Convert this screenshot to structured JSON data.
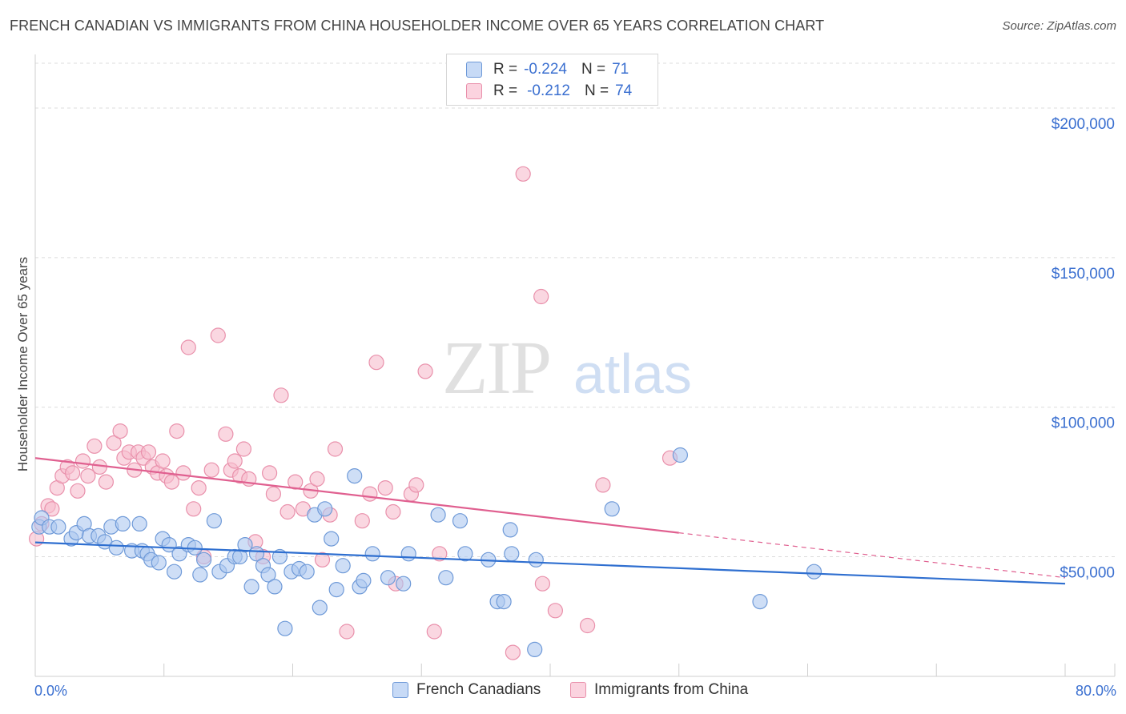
{
  "title": "FRENCH CANADIAN VS IMMIGRANTS FROM CHINA HOUSEHOLDER INCOME OVER 65 YEARS CORRELATION CHART",
  "source": "Source: ZipAtlas.com",
  "watermark": {
    "zip": "ZIP",
    "atlas": "atlas"
  },
  "colors": {
    "blue_fill": "#aec8f0",
    "blue_stroke": "#6f9ad8",
    "blue_line": "#2f6fd0",
    "pink_fill": "#f6bccd",
    "pink_stroke": "#e990ab",
    "pink_line": "#e06090",
    "axis_text": "#3a6fd0",
    "grid": "#dcdcdc"
  },
  "legend_top": {
    "r_label": "R =",
    "n_label": "N =",
    "rows": [
      {
        "r": "-0.224",
        "n": "71"
      },
      {
        "r": "-0.212",
        "n": "74"
      }
    ]
  },
  "bottom_legend": [
    "French Canadians",
    "Immigrants from China"
  ],
  "chart_data": {
    "type": "scatter",
    "title": "FRENCH CANADIAN VS IMMIGRANTS FROM CHINA HOUSEHOLDER INCOME OVER 65 YEARS CORRELATION CHART",
    "xlabel": "",
    "ylabel": "Householder Income Over 65 years",
    "xlim": [
      0,
      80
    ],
    "ylim": [
      10000,
      215000
    ],
    "x_tick_labels": [
      "0.0%",
      "80.0%"
    ],
    "y_ticks": [
      50000,
      100000,
      150000,
      200000
    ],
    "y_tick_labels": [
      "$50,000",
      "$100,000",
      "$150,000",
      "$200,000"
    ],
    "grid": true,
    "legend": "bottom",
    "series": [
      {
        "name": "French Canadians",
        "color": "#aec8f0",
        "regression": {
          "x": [
            0,
            80
          ],
          "y": [
            54800,
            41000
          ]
        },
        "points": [
          [
            0.3,
            60000
          ],
          [
            0.5,
            63000
          ],
          [
            1.1,
            60000
          ],
          [
            1.8,
            60000
          ],
          [
            2.8,
            56000
          ],
          [
            3.2,
            58000
          ],
          [
            3.8,
            61000
          ],
          [
            4.2,
            57000
          ],
          [
            4.9,
            57000
          ],
          [
            5.4,
            55000
          ],
          [
            5.9,
            60000
          ],
          [
            6.3,
            53000
          ],
          [
            6.8,
            61000
          ],
          [
            7.5,
            52000
          ],
          [
            8.1,
            61000
          ],
          [
            8.3,
            52000
          ],
          [
            8.7,
            51000
          ],
          [
            9.0,
            49000
          ],
          [
            9.6,
            48000
          ],
          [
            9.9,
            56000
          ],
          [
            10.4,
            54000
          ],
          [
            10.8,
            45000
          ],
          [
            11.2,
            51000
          ],
          [
            11.9,
            54000
          ],
          [
            12.4,
            53000
          ],
          [
            12.8,
            44000
          ],
          [
            13.1,
            49000
          ],
          [
            13.9,
            62000
          ],
          [
            14.3,
            45000
          ],
          [
            14.9,
            47000
          ],
          [
            15.5,
            50000
          ],
          [
            15.9,
            50000
          ],
          [
            16.3,
            54000
          ],
          [
            16.8,
            40000
          ],
          [
            17.2,
            51000
          ],
          [
            17.7,
            47000
          ],
          [
            18.1,
            44000
          ],
          [
            18.6,
            40000
          ],
          [
            19.0,
            50000
          ],
          [
            19.4,
            26000
          ],
          [
            19.9,
            45000
          ],
          [
            20.5,
            46000
          ],
          [
            21.1,
            45000
          ],
          [
            21.7,
            64000
          ],
          [
            22.1,
            33000
          ],
          [
            22.5,
            66000
          ],
          [
            23.0,
            56000
          ],
          [
            23.4,
            39000
          ],
          [
            23.9,
            47000
          ],
          [
            24.8,
            77000
          ],
          [
            25.2,
            40000
          ],
          [
            25.5,
            42000
          ],
          [
            26.2,
            51000
          ],
          [
            27.4,
            43000
          ],
          [
            28.6,
            41000
          ],
          [
            29.0,
            51000
          ],
          [
            31.3,
            64000
          ],
          [
            31.9,
            43000
          ],
          [
            33.0,
            62000
          ],
          [
            33.4,
            51000
          ],
          [
            35.2,
            49000
          ],
          [
            35.9,
            35000
          ],
          [
            36.4,
            35000
          ],
          [
            36.9,
            59000
          ],
          [
            37.0,
            51000
          ],
          [
            38.8,
            19000
          ],
          [
            38.9,
            49000
          ],
          [
            44.8,
            66000
          ],
          [
            50.1,
            84000
          ],
          [
            56.3,
            35000
          ],
          [
            60.5,
            45000
          ]
        ]
      },
      {
        "name": "Immigrants from China",
        "color": "#f6bccd",
        "regression": {
          "x": [
            0,
            50
          ],
          "y": [
            83000,
            58000
          ],
          "dashed_to": {
            "x": 80,
            "y": 43000
          }
        },
        "points": [
          [
            0.1,
            56000
          ],
          [
            0.5,
            61000
          ],
          [
            1.0,
            67000
          ],
          [
            1.3,
            66000
          ],
          [
            1.7,
            73000
          ],
          [
            2.1,
            77000
          ],
          [
            2.5,
            80000
          ],
          [
            2.9,
            78000
          ],
          [
            3.3,
            72000
          ],
          [
            3.7,
            82000
          ],
          [
            4.1,
            77000
          ],
          [
            4.6,
            87000
          ],
          [
            5.0,
            80000
          ],
          [
            5.5,
            75000
          ],
          [
            6.1,
            88000
          ],
          [
            6.6,
            92000
          ],
          [
            6.9,
            83000
          ],
          [
            7.3,
            85000
          ],
          [
            7.7,
            79000
          ],
          [
            8.0,
            85000
          ],
          [
            8.4,
            83000
          ],
          [
            8.8,
            85000
          ],
          [
            9.1,
            80000
          ],
          [
            9.5,
            78000
          ],
          [
            9.9,
            82000
          ],
          [
            10.2,
            77000
          ],
          [
            10.6,
            75000
          ],
          [
            11.0,
            92000
          ],
          [
            11.5,
            78000
          ],
          [
            11.9,
            120000
          ],
          [
            12.3,
            66000
          ],
          [
            12.7,
            73000
          ],
          [
            13.1,
            50000
          ],
          [
            13.7,
            79000
          ],
          [
            14.2,
            124000
          ],
          [
            14.8,
            91000
          ],
          [
            15.2,
            79000
          ],
          [
            15.5,
            82000
          ],
          [
            15.9,
            77000
          ],
          [
            16.2,
            86000
          ],
          [
            16.6,
            76000
          ],
          [
            17.1,
            55000
          ],
          [
            17.7,
            50000
          ],
          [
            18.2,
            78000
          ],
          [
            18.5,
            71000
          ],
          [
            19.1,
            104000
          ],
          [
            19.6,
            65000
          ],
          [
            20.2,
            75000
          ],
          [
            20.8,
            66000
          ],
          [
            21.4,
            72000
          ],
          [
            21.9,
            76000
          ],
          [
            22.3,
            49000
          ],
          [
            22.9,
            64000
          ],
          [
            23.3,
            86000
          ],
          [
            24.2,
            25000
          ],
          [
            25.4,
            62000
          ],
          [
            26.0,
            71000
          ],
          [
            26.5,
            115000
          ],
          [
            27.2,
            73000
          ],
          [
            27.8,
            65000
          ],
          [
            28.0,
            41000
          ],
          [
            29.2,
            71000
          ],
          [
            29.6,
            74000
          ],
          [
            30.3,
            112000
          ],
          [
            31.0,
            25000
          ],
          [
            31.4,
            51000
          ],
          [
            37.1,
            18000
          ],
          [
            37.9,
            178000
          ],
          [
            39.3,
            137000
          ],
          [
            39.4,
            41000
          ],
          [
            40.4,
            32000
          ],
          [
            42.9,
            27000
          ],
          [
            44.1,
            74000
          ],
          [
            49.3,
            83000
          ]
        ]
      }
    ]
  }
}
